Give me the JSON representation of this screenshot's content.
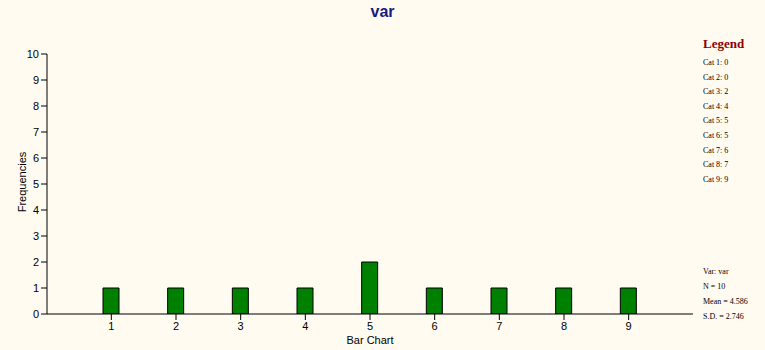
{
  "chart_data": {
    "type": "bar",
    "title": "var",
    "x_label": "Bar Chart",
    "y_label": "Frequencies",
    "categories": [
      "1",
      "2",
      "3",
      "4",
      "5",
      "6",
      "7",
      "8",
      "9"
    ],
    "values": [
      1,
      1,
      1,
      1,
      2,
      1,
      1,
      1,
      1
    ],
    "color": "#008000",
    "ylim": [
      0,
      10
    ],
    "yticks": [
      0,
      1,
      2,
      3,
      4,
      5,
      6,
      7,
      8,
      9,
      10
    ],
    "grid": false,
    "legend_title": "Legend",
    "legend_entries": [
      "Cat 1: 0",
      "Cat 2: 0",
      "Cat 3: 2",
      "Cat 4: 4",
      "Cat 5: 5",
      "Cat 6: 5",
      "Cat 7: 6",
      "Cat 8: 7",
      "Cat 9: 9"
    ],
    "annotations": [
      "Var: var",
      "N = 10",
      "Mean = 4.586",
      "S.D. = 2.746"
    ]
  }
}
